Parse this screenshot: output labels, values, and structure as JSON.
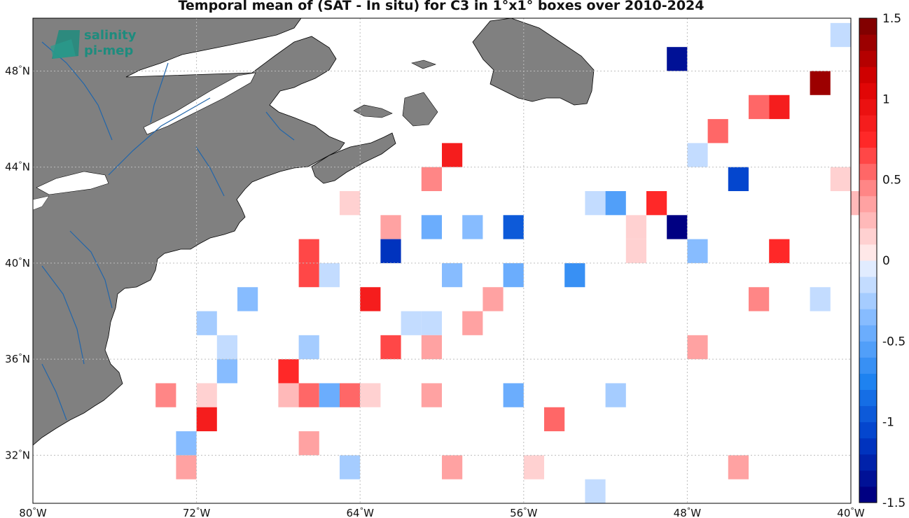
{
  "title": "Temporal mean of (SAT - In situ) for C3 in 1°x1° boxes over 2010-2024",
  "logo": {
    "line1": "salinity",
    "line2": "pi-mep"
  },
  "colors": {
    "land": "#808080",
    "coast": "#000000",
    "rivers": "#2266aa",
    "grid": "#c8c8c8",
    "ocean": "#ffffff"
  },
  "axes": {
    "x_ticks": [
      {
        "lon": -80,
        "deg": "80",
        "hemi": "W"
      },
      {
        "lon": -72,
        "deg": "72",
        "hemi": "W"
      },
      {
        "lon": -64,
        "deg": "64",
        "hemi": "W"
      },
      {
        "lon": -56,
        "deg": "56",
        "hemi": "W"
      },
      {
        "lon": -48,
        "deg": "48",
        "hemi": "W"
      },
      {
        "lon": -40,
        "deg": "40",
        "hemi": "W"
      }
    ],
    "y_ticks": [
      {
        "lat": 48,
        "deg": "48",
        "hemi": "N"
      },
      {
        "lat": 44,
        "deg": "44",
        "hemi": "N"
      },
      {
        "lat": 40,
        "deg": "40",
        "hemi": "N"
      },
      {
        "lat": 36,
        "deg": "36",
        "hemi": "N"
      },
      {
        "lat": 32,
        "deg": "32",
        "hemi": "N"
      }
    ],
    "lon_range": [
      -80,
      -40
    ],
    "lat_range": [
      30.0,
      50.2
    ]
  },
  "colorbar": {
    "range": [
      -1.5,
      1.5
    ],
    "ticks": [
      "1.5",
      "1",
      "0.5",
      "0",
      "-0.5",
      "-1",
      "-1.5"
    ],
    "tick_values": [
      1.5,
      1,
      0.5,
      0,
      -0.5,
      -1,
      -1.5
    ],
    "n_levels": 30
  },
  "chart_data": {
    "type": "heatmap",
    "title": "Temporal mean of (SAT - In situ) for C3 in 1°x1° boxes over 2010-2024",
    "units": "1°x1° boxes, lon/lat of lower-left corner",
    "cells": [
      {
        "lon": -41,
        "lat": 49,
        "value": -0.1
      },
      {
        "lon": -49,
        "lat": 48,
        "value": -1.4
      },
      {
        "lon": -42,
        "lat": 47,
        "value": 1.35
      },
      {
        "lon": -45,
        "lat": 46,
        "value": 0.5
      },
      {
        "lon": -44,
        "lat": 46,
        "value": 0.85
      },
      {
        "lon": -47,
        "lat": 45,
        "value": 0.55
      },
      {
        "lon": -60,
        "lat": 44,
        "value": 0.9
      },
      {
        "lon": -48,
        "lat": 44,
        "value": -0.1
      },
      {
        "lon": -61,
        "lat": 43,
        "value": 0.45
      },
      {
        "lon": -46,
        "lat": 43,
        "value": -1.05
      },
      {
        "lon": -41,
        "lat": 43,
        "value": 0.15
      },
      {
        "lon": -65,
        "lat": 42,
        "value": 0.15
      },
      {
        "lon": -53,
        "lat": 42,
        "value": -0.1
      },
      {
        "lon": -52,
        "lat": 42,
        "value": -0.55
      },
      {
        "lon": -50,
        "lat": 42,
        "value": 0.7
      },
      {
        "lon": -40,
        "lat": 42,
        "value": 0.2
      },
      {
        "lon": -63,
        "lat": 41,
        "value": 0.3
      },
      {
        "lon": -61,
        "lat": 41,
        "value": -0.45
      },
      {
        "lon": -59,
        "lat": 41,
        "value": -0.4
      },
      {
        "lon": -57,
        "lat": 41,
        "value": -0.9
      },
      {
        "lon": -51,
        "lat": 41,
        "value": 0.15
      },
      {
        "lon": -49,
        "lat": 41,
        "value": -1.5
      },
      {
        "lon": -67,
        "lat": 40,
        "value": 0.65
      },
      {
        "lon": -63,
        "lat": 40,
        "value": -1.15
      },
      {
        "lon": -51,
        "lat": 40,
        "value": 0.15
      },
      {
        "lon": -48,
        "lat": 40,
        "value": -0.35
      },
      {
        "lon": -44,
        "lat": 40,
        "value": 0.75
      },
      {
        "lon": -67,
        "lat": 39,
        "value": 0.65
      },
      {
        "lon": -66,
        "lat": 39,
        "value": -0.2
      },
      {
        "lon": -60,
        "lat": 39,
        "value": -0.35
      },
      {
        "lon": -57,
        "lat": 39,
        "value": -0.5
      },
      {
        "lon": -54,
        "lat": 39,
        "value": -0.7
      },
      {
        "lon": -70,
        "lat": 38,
        "value": -0.4
      },
      {
        "lon": -64,
        "lat": 38,
        "value": 0.85
      },
      {
        "lon": -58,
        "lat": 38,
        "value": 0.3
      },
      {
        "lon": -45,
        "lat": 38,
        "value": 0.45
      },
      {
        "lon": -42,
        "lat": 38,
        "value": -0.1
      },
      {
        "lon": -72,
        "lat": 37,
        "value": -0.25
      },
      {
        "lon": -62,
        "lat": 37,
        "value": -0.2
      },
      {
        "lon": -61,
        "lat": 37,
        "value": -0.2
      },
      {
        "lon": -59,
        "lat": 37,
        "value": 0.35
      },
      {
        "lon": -71,
        "lat": 36,
        "value": -0.1
      },
      {
        "lon": -67,
        "lat": 36,
        "value": -0.25
      },
      {
        "lon": -63,
        "lat": 36,
        "value": 0.6
      },
      {
        "lon": -61,
        "lat": 36,
        "value": 0.3
      },
      {
        "lon": -48,
        "lat": 36,
        "value": 0.3
      },
      {
        "lon": -71,
        "lat": 35,
        "value": -0.35
      },
      {
        "lon": -68,
        "lat": 35,
        "value": 0.7
      },
      {
        "lon": -74,
        "lat": 34,
        "value": 0.45
      },
      {
        "lon": -72,
        "lat": 34,
        "value": 0.15
      },
      {
        "lon": -68,
        "lat": 34,
        "value": 0.2
      },
      {
        "lon": -67,
        "lat": 34,
        "value": 0.55
      },
      {
        "lon": -66,
        "lat": 34,
        "value": -0.45
      },
      {
        "lon": -65,
        "lat": 34,
        "value": 0.5
      },
      {
        "lon": -64,
        "lat": 34,
        "value": 0.15
      },
      {
        "lon": -61,
        "lat": 34,
        "value": 0.35
      },
      {
        "lon": -57,
        "lat": 34,
        "value": -0.5
      },
      {
        "lon": -52,
        "lat": 34,
        "value": -0.25
      },
      {
        "lon": -72,
        "lat": 33,
        "value": 0.9
      },
      {
        "lon": -55,
        "lat": 33,
        "value": 0.55
      },
      {
        "lon": -73,
        "lat": 32,
        "value": -0.3
      },
      {
        "lon": -67,
        "lat": 32,
        "value": 0.35
      },
      {
        "lon": -73,
        "lat": 31,
        "value": 0.3
      },
      {
        "lon": -65,
        "lat": 31,
        "value": -0.25
      },
      {
        "lon": -60,
        "lat": 31,
        "value": 0.35
      },
      {
        "lon": -56,
        "lat": 31,
        "value": 0.15
      },
      {
        "lon": -46,
        "lat": 31,
        "value": 0.35
      },
      {
        "lon": -53,
        "lat": 30,
        "value": -0.1
      }
    ]
  }
}
